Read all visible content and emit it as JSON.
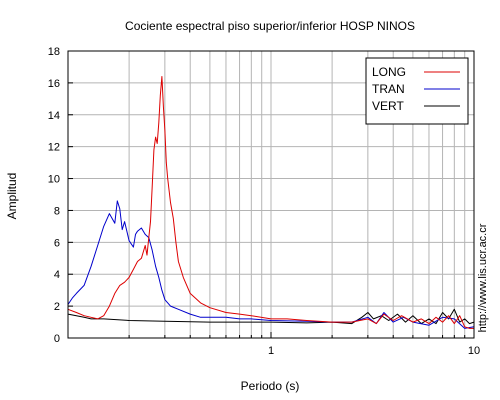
{
  "chart_data": {
    "type": "line",
    "title": "Cociente espectral piso superior/inferior  HOSP NINOS",
    "xlabel": "Periodo (s)",
    "ylabel": "Amplitud",
    "x_scale": "log",
    "xlim": [
      0.1,
      10
    ],
    "ylim": [
      0,
      18
    ],
    "x_tick_labels": [
      {
        "value": 1,
        "label": "1"
      },
      {
        "value": 10,
        "label": "10"
      }
    ],
    "y_ticks": [
      0,
      2,
      4,
      6,
      8,
      10,
      12,
      14,
      16,
      18
    ],
    "grid": true,
    "legend_position": "top-right",
    "side_note": "http://www.lis.ucr.ac.cr",
    "series": [
      {
        "name": "LONG",
        "color": "#dd0000",
        "points": [
          [
            0.1,
            1.8
          ],
          [
            0.11,
            1.6
          ],
          [
            0.12,
            1.4
          ],
          [
            0.13,
            1.3
          ],
          [
            0.14,
            1.2
          ],
          [
            0.15,
            1.4
          ],
          [
            0.16,
            2.0
          ],
          [
            0.17,
            2.8
          ],
          [
            0.18,
            3.3
          ],
          [
            0.19,
            3.5
          ],
          [
            0.2,
            3.8
          ],
          [
            0.21,
            4.3
          ],
          [
            0.22,
            4.8
          ],
          [
            0.23,
            5.0
          ],
          [
            0.24,
            5.8
          ],
          [
            0.245,
            5.2
          ],
          [
            0.25,
            6.3
          ],
          [
            0.255,
            7.3
          ],
          [
            0.26,
            9.5
          ],
          [
            0.265,
            11.8
          ],
          [
            0.27,
            12.6
          ],
          [
            0.275,
            12.2
          ],
          [
            0.28,
            13.5
          ],
          [
            0.285,
            15.2
          ],
          [
            0.29,
            16.4
          ],
          [
            0.295,
            14.5
          ],
          [
            0.3,
            13.0
          ],
          [
            0.305,
            11.0
          ],
          [
            0.31,
            10.0
          ],
          [
            0.32,
            8.5
          ],
          [
            0.33,
            7.5
          ],
          [
            0.34,
            6.0
          ],
          [
            0.35,
            4.8
          ],
          [
            0.37,
            3.8
          ],
          [
            0.4,
            2.8
          ],
          [
            0.45,
            2.2
          ],
          [
            0.5,
            1.9
          ],
          [
            0.6,
            1.6
          ],
          [
            0.7,
            1.5
          ],
          [
            0.8,
            1.4
          ],
          [
            1.0,
            1.2
          ],
          [
            1.2,
            1.2
          ],
          [
            1.5,
            1.1
          ],
          [
            2.0,
            1.0
          ],
          [
            2.5,
            1.0
          ],
          [
            3.0,
            1.2
          ],
          [
            3.3,
            0.9
          ],
          [
            3.6,
            1.5
          ],
          [
            4.0,
            1.1
          ],
          [
            4.4,
            1.4
          ],
          [
            5.0,
            1.0
          ],
          [
            5.5,
            1.2
          ],
          [
            6.0,
            0.9
          ],
          [
            6.5,
            1.3
          ],
          [
            7.0,
            1.0
          ],
          [
            7.5,
            1.4
          ],
          [
            8.0,
            0.9
          ],
          [
            8.5,
            1.4
          ],
          [
            9.0,
            0.7
          ],
          [
            9.5,
            0.6
          ],
          [
            10.0,
            0.6
          ]
        ]
      },
      {
        "name": "TRAN",
        "color": "#0000cc",
        "points": [
          [
            0.1,
            2.1
          ],
          [
            0.105,
            2.5
          ],
          [
            0.11,
            2.8
          ],
          [
            0.12,
            3.3
          ],
          [
            0.13,
            4.5
          ],
          [
            0.14,
            5.8
          ],
          [
            0.15,
            7.0
          ],
          [
            0.16,
            7.8
          ],
          [
            0.17,
            7.2
          ],
          [
            0.175,
            8.6
          ],
          [
            0.18,
            8.1
          ],
          [
            0.185,
            6.8
          ],
          [
            0.19,
            7.3
          ],
          [
            0.2,
            6.1
          ],
          [
            0.21,
            5.7
          ],
          [
            0.215,
            6.5
          ],
          [
            0.22,
            6.7
          ],
          [
            0.23,
            6.9
          ],
          [
            0.24,
            6.5
          ],
          [
            0.25,
            6.3
          ],
          [
            0.26,
            5.5
          ],
          [
            0.27,
            4.5
          ],
          [
            0.28,
            3.8
          ],
          [
            0.29,
            3.0
          ],
          [
            0.3,
            2.4
          ],
          [
            0.32,
            2.0
          ],
          [
            0.35,
            1.8
          ],
          [
            0.4,
            1.5
          ],
          [
            0.45,
            1.3
          ],
          [
            0.5,
            1.3
          ],
          [
            0.6,
            1.3
          ],
          [
            0.7,
            1.2
          ],
          [
            0.8,
            1.2
          ],
          [
            1.0,
            1.1
          ],
          [
            1.5,
            1.05
          ],
          [
            2.0,
            1.0
          ],
          [
            2.5,
            1.0
          ],
          [
            3.0,
            1.3
          ],
          [
            3.3,
            0.9
          ],
          [
            3.6,
            1.6
          ],
          [
            4.0,
            1.0
          ],
          [
            4.5,
            1.3
          ],
          [
            5.0,
            1.0
          ],
          [
            6.0,
            0.8
          ],
          [
            7.0,
            1.3
          ],
          [
            8.0,
            1.2
          ],
          [
            9.0,
            0.6
          ],
          [
            10.0,
            0.7
          ]
        ]
      },
      {
        "name": "VERT",
        "color": "#000000",
        "points": [
          [
            0.1,
            1.5
          ],
          [
            0.11,
            1.4
          ],
          [
            0.12,
            1.3
          ],
          [
            0.13,
            1.2
          ],
          [
            0.15,
            1.2
          ],
          [
            0.2,
            1.1
          ],
          [
            0.3,
            1.05
          ],
          [
            0.5,
            1.0
          ],
          [
            1.0,
            1.0
          ],
          [
            1.5,
            0.95
          ],
          [
            2.0,
            1.0
          ],
          [
            2.5,
            0.9
          ],
          [
            2.8,
            1.3
          ],
          [
            3.0,
            1.6
          ],
          [
            3.2,
            1.2
          ],
          [
            3.5,
            1.4
          ],
          [
            3.8,
            1.1
          ],
          [
            4.2,
            1.5
          ],
          [
            4.6,
            1.0
          ],
          [
            5.0,
            1.4
          ],
          [
            5.5,
            0.9
          ],
          [
            6.0,
            1.2
          ],
          [
            6.5,
            0.9
          ],
          [
            7.0,
            1.6
          ],
          [
            7.5,
            1.2
          ],
          [
            8.0,
            1.8
          ],
          [
            8.5,
            1.0
          ],
          [
            9.0,
            1.2
          ],
          [
            9.5,
            0.9
          ],
          [
            10.0,
            1.0
          ]
        ]
      }
    ]
  }
}
